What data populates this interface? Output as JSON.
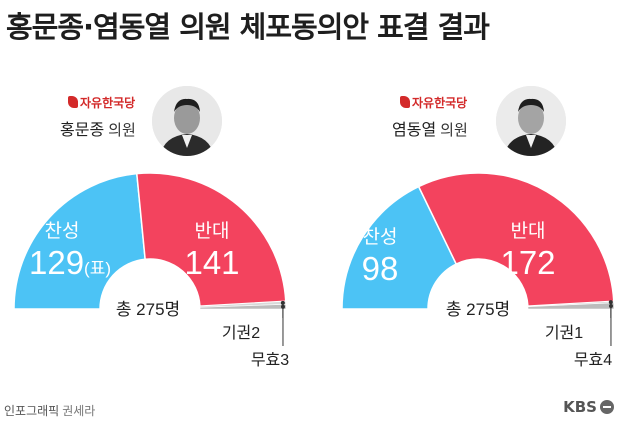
{
  "title": "홍문종·염동열 의원 체포동의안 표결 결과",
  "colors": {
    "yes": "#4cc3f5",
    "no": "#f3435e",
    "abstain": "#d9d9d9",
    "invalid": "#bcbcbc",
    "party": "#d32a2a"
  },
  "panels": [
    {
      "party": "자유한국당",
      "name": "홍문종",
      "name_suffix": "의원",
      "total_label": "총 275명",
      "yes_label": "찬성",
      "yes_value": "129",
      "yes_unit": "(표)",
      "no_label": "반대",
      "no_value": "141",
      "abstain_label": "기권2",
      "invalid_label": "무효3"
    },
    {
      "party": "자유한국당",
      "name": "염동열",
      "name_suffix": "의원",
      "total_label": "총 275명",
      "yes_label": "찬성",
      "yes_value": "98",
      "yes_unit": "",
      "no_label": "반대",
      "no_value": "172",
      "abstain_label": "기권1",
      "invalid_label": "무효4"
    }
  ],
  "chart_data": [
    {
      "type": "pie",
      "title": "홍문종 의원",
      "total": 275,
      "categories": [
        "찬성",
        "반대",
        "기권",
        "무효"
      ],
      "values": [
        129,
        141,
        2,
        3
      ]
    },
    {
      "type": "pie",
      "title": "염동열 의원",
      "total": 275,
      "categories": [
        "찬성",
        "반대",
        "기권",
        "무효"
      ],
      "values": [
        98,
        172,
        1,
        4
      ]
    }
  ],
  "footer": {
    "credit": "인포그래픽",
    "author": "권세라",
    "brand": "KBS"
  }
}
